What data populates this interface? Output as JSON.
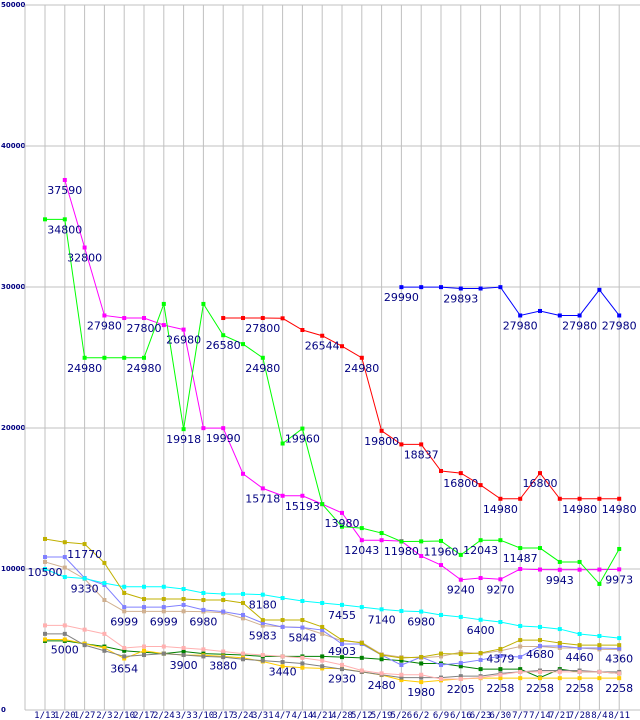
{
  "chart_data": {
    "type": "line",
    "title": "",
    "xlabel": "",
    "ylabel": "",
    "ylim": [
      0,
      50000
    ],
    "yticks": [
      0,
      10000,
      20000,
      30000,
      40000,
      50000
    ],
    "grid": true,
    "categories": [
      "1/13",
      "1/20",
      "1/27",
      "2/3",
      "2/10",
      "2/17",
      "2/24",
      "3/3",
      "3/10",
      "3/17",
      "3/24",
      "3/31",
      "4/7",
      "4/14",
      "4/21",
      "4/28",
      "5/12",
      "5/19",
      "5/26",
      "6/2",
      "6/9",
      "6/16",
      "6/23",
      "6/30",
      "7/7",
      "7/14",
      "7/21",
      "7/28",
      "8/4",
      "8/11"
    ],
    "series": [
      {
        "name": "red",
        "color": "#ff0000",
        "values": [
          null,
          null,
          null,
          null,
          null,
          null,
          null,
          null,
          null,
          27800,
          27800,
          27800,
          27780,
          26950,
          26544,
          25800,
          24980,
          19800,
          18837,
          18837,
          16950,
          16800,
          15950,
          14980,
          14980,
          16800,
          14980,
          14980,
          14980,
          14980
        ]
      },
      {
        "name": "blue",
        "color": "#0000ff",
        "values": [
          null,
          null,
          null,
          null,
          null,
          null,
          null,
          null,
          null,
          null,
          null,
          null,
          null,
          null,
          null,
          null,
          null,
          null,
          29990,
          29990,
          29990,
          29893,
          29893,
          29990,
          27980,
          28300,
          27980,
          27980,
          29800,
          27980
        ]
      },
      {
        "name": "green",
        "color": "#00ff00",
        "values": [
          34800,
          34800,
          24980,
          24980,
          24980,
          24980,
          28800,
          19918,
          28800,
          26580,
          25950,
          24980,
          18900,
          19960,
          14600,
          13000,
          12900,
          12550,
          11950,
          11960,
          11990,
          11000,
          12043,
          12043,
          11487,
          11487,
          10500,
          10500,
          8940,
          11420
        ]
      },
      {
        "name": "magenta",
        "color": "#ff00ff",
        "values": [
          null,
          37590,
          32800,
          27980,
          27800,
          27800,
          27300,
          26980,
          19990,
          19990,
          16750,
          15718,
          15193,
          15193,
          14600,
          13980,
          12043,
          12043,
          11980,
          10920,
          10280,
          9240,
          9360,
          9270,
          10000,
          9960,
          9943,
          9950,
          9960,
          9973
        ]
      },
      {
        "name": "olive",
        "color": "#c0b000",
        "values": [
          12130,
          11900,
          11770,
          10430,
          8300,
          7870,
          7870,
          7870,
          7800,
          7800,
          7590,
          6380,
          6380,
          6380,
          5890,
          4960,
          4750,
          3900,
          3690,
          3760,
          4000,
          3970,
          4040,
          4330,
          4960,
          4960,
          4750,
          4600,
          4600,
          4600
        ]
      },
      {
        "name": "cyan",
        "color": "#00ffff",
        "values": [
          10000,
          9430,
          9330,
          9000,
          8740,
          8740,
          8740,
          8580,
          8300,
          8230,
          8230,
          8180,
          7940,
          7730,
          7590,
          7455,
          7300,
          7140,
          7020,
          6980,
          6740,
          6600,
          6400,
          6240,
          5960,
          5890,
          5740,
          5390,
          5250,
          5100
        ]
      },
      {
        "name": "light-blue",
        "color": "#8080ff",
        "values": [
          10850,
          10850,
          9360,
          8870,
          7300,
          7300,
          7300,
          7450,
          7100,
          6980,
          6740,
          6170,
          5890,
          5848,
          5670,
          4680,
          4680,
          3900,
          3190,
          3760,
          3190,
          3330,
          3550,
          3830,
          3760,
          4540,
          4540,
          4400,
          4400,
          4360
        ]
      },
      {
        "name": "tan",
        "color": "#d0b090",
        "values": [
          10500,
          10100,
          9300,
          7800,
          6999,
          6999,
          6999,
          6999,
          6980,
          6900,
          6500,
          5983,
          5900,
          5848,
          5400,
          4903,
          4800,
          3950,
          3750,
          3700,
          3800,
          4100,
          4000,
          4200,
          4500,
          4500,
          4400,
          4400,
          4300,
          4300
        ]
      },
      {
        "name": "pink",
        "color": "#ffb0b0",
        "values": [
          6000,
          6000,
          5700,
          5400,
          4400,
          4500,
          4500,
          4400,
          4300,
          4150,
          4000,
          3900,
          3800,
          3700,
          3500,
          3200,
          2800,
          2600,
          2500,
          2500,
          2200,
          2200,
          2300,
          2500,
          2700,
          2700,
          2700,
          2700,
          2700,
          2600
        ]
      },
      {
        "name": "gray",
        "color": "#808080",
        "values": [
          5400,
          5400,
          4600,
          4200,
          3800,
          3900,
          4000,
          3900,
          3800,
          3750,
          3600,
          3500,
          3400,
          3300,
          3100,
          2900,
          2700,
          2500,
          2300,
          2300,
          2300,
          2400,
          2400,
          2600,
          2700,
          2800,
          2800,
          2800,
          2700,
          2700
        ]
      },
      {
        "name": "gold",
        "color": "#ffcc00",
        "values": [
          5000,
          5000,
          4700,
          4400,
          3654,
          4200,
          4000,
          3900,
          3880,
          3800,
          3700,
          3440,
          3100,
          3000,
          2950,
          2930,
          2700,
          2480,
          2120,
          1980,
          2100,
          2205,
          2258,
          2258,
          2258,
          2258,
          2258,
          2258,
          2258,
          2258
        ]
      },
      {
        "name": "dark-green",
        "color": "#008000",
        "values": [
          4900,
          4900,
          4700,
          4500,
          4200,
          4100,
          4000,
          4150,
          4000,
          3950,
          3900,
          3800,
          3800,
          3800,
          3800,
          3750,
          3700,
          3600,
          3500,
          3300,
          3300,
          3100,
          2900,
          2900,
          2900,
          2300,
          2900,
          2700,
          2700,
          2600
        ]
      }
    ],
    "annotations": [
      {
        "i": 1,
        "v": 37590,
        "text": "37590"
      },
      {
        "i": 1,
        "v": 34800,
        "text": "34800"
      },
      {
        "i": 2,
        "v": 32800,
        "text": "32800"
      },
      {
        "i": 3,
        "v": 27980,
        "text": "27980"
      },
      {
        "i": 2,
        "v": 24980,
        "text": "24980"
      },
      {
        "i": 5,
        "v": 27800,
        "text": "27800"
      },
      {
        "i": 5,
        "v": 24980,
        "text": "24980"
      },
      {
        "i": 7,
        "v": 26980,
        "text": "26980"
      },
      {
        "i": 7,
        "v": 19918,
        "text": "19918"
      },
      {
        "i": 9,
        "v": 19990,
        "text": "19990"
      },
      {
        "i": 9,
        "v": 26580,
        "text": "26580"
      },
      {
        "i": 11,
        "v": 27800,
        "text": "27800"
      },
      {
        "i": 11,
        "v": 24980,
        "text": "24980"
      },
      {
        "i": 11,
        "v": 15718,
        "text": "15718"
      },
      {
        "i": 13,
        "v": 19960,
        "text": "19960"
      },
      {
        "i": 13,
        "v": 15193,
        "text": "15193"
      },
      {
        "i": 14,
        "v": 26544,
        "text": "26544"
      },
      {
        "i": 16,
        "v": 24980,
        "text": "24980"
      },
      {
        "i": 15,
        "v": 13980,
        "text": "13980"
      },
      {
        "i": 17,
        "v": 19800,
        "text": "19800"
      },
      {
        "i": 16,
        "v": 12043,
        "text": "12043"
      },
      {
        "i": 18,
        "v": 11980,
        "text": "11980"
      },
      {
        "i": 19,
        "v": 18837,
        "text": "18837"
      },
      {
        "i": 20,
        "v": 11960,
        "text": "11960"
      },
      {
        "i": 21,
        "v": 16800,
        "text": "16800"
      },
      {
        "i": 22,
        "v": 12043,
        "text": "12043"
      },
      {
        "i": 23,
        "v": 14980,
        "text": "14980"
      },
      {
        "i": 24,
        "v": 11487,
        "text": "11487"
      },
      {
        "i": 25,
        "v": 16800,
        "text": "16800"
      },
      {
        "i": 18,
        "v": 29990,
        "text": "29990"
      },
      {
        "i": 21,
        "v": 29893,
        "text": "29893"
      },
      {
        "i": 24,
        "v": 27980,
        "text": "27980"
      },
      {
        "i": 27,
        "v": 27980,
        "text": "27980"
      },
      {
        "i": 29,
        "v": 27980,
        "text": "27980"
      },
      {
        "i": 27,
        "v": 14980,
        "text": "14980"
      },
      {
        "i": 29,
        "v": 14980,
        "text": "14980"
      },
      {
        "i": 26,
        "v": 9943,
        "text": "9943"
      },
      {
        "i": 29,
        "v": 9973,
        "text": "9973"
      },
      {
        "i": 21,
        "v": 9240,
        "text": "9240"
      },
      {
        "i": 23,
        "v": 9270,
        "text": "9270"
      },
      {
        "i": 0,
        "v": 10500,
        "text": "10500"
      },
      {
        "i": 2,
        "v": 11770,
        "text": "11770"
      },
      {
        "i": 2,
        "v": 9330,
        "text": "9330"
      },
      {
        "i": 4,
        "v": 6999,
        "text": "6999"
      },
      {
        "i": 6,
        "v": 6999,
        "text": "6999"
      },
      {
        "i": 8,
        "v": 6980,
        "text": "6980"
      },
      {
        "i": 11,
        "v": 8180,
        "text": "8180"
      },
      {
        "i": 11,
        "v": 5983,
        "text": "5983"
      },
      {
        "i": 13,
        "v": 5848,
        "text": "5848"
      },
      {
        "i": 15,
        "v": 7455,
        "text": "7455"
      },
      {
        "i": 15,
        "v": 4903,
        "text": "4903"
      },
      {
        "i": 17,
        "v": 7140,
        "text": "7140"
      },
      {
        "i": 19,
        "v": 6980,
        "text": "6980"
      },
      {
        "i": 22,
        "v": 6400,
        "text": "6400"
      },
      {
        "i": 23,
        "v": 4379,
        "text": "4379"
      },
      {
        "i": 25,
        "v": 4680,
        "text": "4680"
      },
      {
        "i": 27,
        "v": 4460,
        "text": "4460"
      },
      {
        "i": 29,
        "v": 4360,
        "text": "4360"
      },
      {
        "i": 1,
        "v": 5000,
        "text": "5000"
      },
      {
        "i": 4,
        "v": 3654,
        "text": "3654"
      },
      {
        "i": 7,
        "v": 3900,
        "text": "3900"
      },
      {
        "i": 9,
        "v": 3880,
        "text": "3880"
      },
      {
        "i": 12,
        "v": 3440,
        "text": "3440"
      },
      {
        "i": 15,
        "v": 2930,
        "text": "2930"
      },
      {
        "i": 17,
        "v": 2480,
        "text": "2480"
      },
      {
        "i": 19,
        "v": 1980,
        "text": "1980"
      },
      {
        "i": 21,
        "v": 2205,
        "text": "2205"
      },
      {
        "i": 23,
        "v": 2258,
        "text": "2258"
      },
      {
        "i": 25,
        "v": 2258,
        "text": "2258"
      },
      {
        "i": 27,
        "v": 2258,
        "text": "2258"
      },
      {
        "i": 29,
        "v": 2258,
        "text": "2258"
      }
    ]
  }
}
